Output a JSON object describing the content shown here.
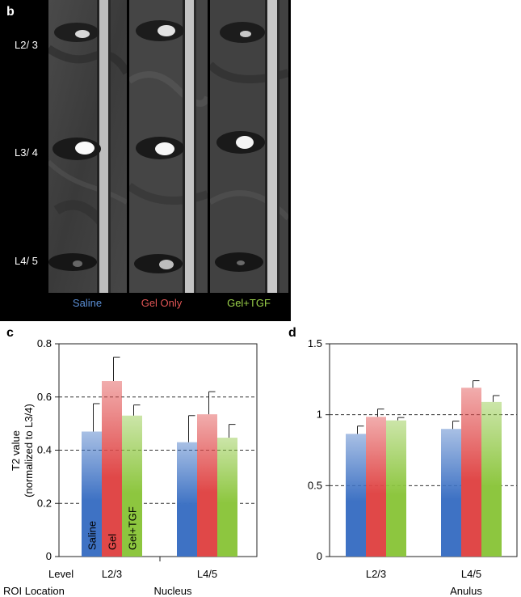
{
  "panel_b": {
    "label": "b",
    "levels": [
      "L2/ 3",
      "L3/ 4",
      "L4/ 5"
    ],
    "conditions": [
      {
        "label": "Saline",
        "color": "#5b8fd6"
      },
      {
        "label": "Gel Only",
        "color": "#e05555"
      },
      {
        "label": "Gel+TGF",
        "color": "#9bd24a"
      }
    ]
  },
  "colors": {
    "saline": "#3e72c4",
    "gel": "#e04848",
    "tgf": "#8dc63f"
  },
  "chart_data": [
    {
      "panel": "c",
      "type": "bar",
      "title": "",
      "ylabel": "T2 value (normalized to L3/4)",
      "ylabel_lines": [
        "T2 value",
        "(normalized to L3/4)"
      ],
      "xlabel": "Nucleus",
      "x_prefix_labels": [
        "Level",
        "ROI Location"
      ],
      "categories": [
        "L2/3",
        "L4/5"
      ],
      "ylim": [
        0,
        0.8
      ],
      "yticks": [
        "0",
        "0.2",
        "0.4",
        "0.6",
        "0.8"
      ],
      "ytick_values": [
        0,
        0.2,
        0.4,
        0.6,
        0.8
      ],
      "dashed_gridlines": [
        0.2,
        0.4,
        0.6
      ],
      "bar_labels": [
        "Saline",
        "Gel",
        "Gel+TGF"
      ],
      "series": [
        {
          "values": [
            0.47,
            0.43
          ],
          "errors": [
            0.105,
            0.1
          ]
        },
        {
          "values": [
            0.66,
            0.535
          ],
          "errors": [
            0.09,
            0.085
          ]
        },
        {
          "values": [
            0.53,
            0.447
          ],
          "errors": [
            0.04,
            0.05
          ]
        }
      ]
    },
    {
      "panel": "d",
      "type": "bar",
      "title": "",
      "ylabel": "",
      "xlabel": "Anulus",
      "categories": [
        "L2/3",
        "L4/5"
      ],
      "ylim": [
        0,
        1.5
      ],
      "yticks": [
        "0",
        "0.5",
        "1",
        "1.5"
      ],
      "ytick_values": [
        0,
        0.5,
        1,
        1.5
      ],
      "dashed_gridlines": [
        0.5,
        1.0
      ],
      "series": [
        {
          "values": [
            0.865,
            0.9
          ],
          "errors": [
            0.055,
            0.055
          ]
        },
        {
          "values": [
            0.985,
            1.19
          ],
          "errors": [
            0.055,
            0.05
          ]
        },
        {
          "values": [
            0.96,
            1.09
          ],
          "errors": [
            0.02,
            0.045
          ]
        }
      ]
    }
  ]
}
